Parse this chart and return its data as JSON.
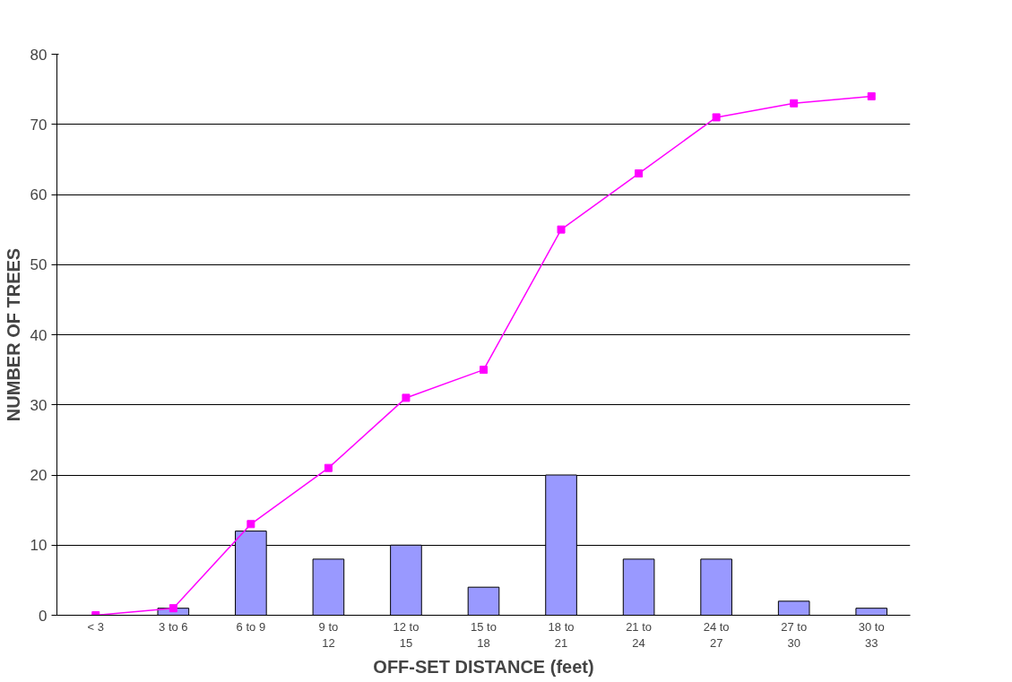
{
  "chart_data": {
    "type": "bar",
    "xlabel": "OFF-SET DISTANCE (feet)",
    "ylabel": "NUMBER OF TREES",
    "categories": [
      "< 3",
      "3 to 6",
      "6 to 9",
      "9 to\n12",
      "12 to\n15",
      "15 to\n18",
      "18 to\n21",
      "21 to\n24",
      "24 to\n27",
      "27 to\n30",
      "30 to\n33"
    ],
    "series": [
      {
        "color": "#9999ff",
        "values": [
          0,
          1,
          12,
          8,
          10,
          4,
          20,
          8,
          8,
          2,
          1
        ]
      },
      {
        "type": "line",
        "color": "#ff00ff",
        "marker": "square",
        "values": [
          0,
          1,
          13,
          21,
          31,
          35,
          55,
          63,
          71,
          73,
          74
        ]
      }
    ],
    "ylim": [
      0,
      80
    ],
    "yticks": [
      0,
      10,
      20,
      30,
      40,
      50,
      60,
      70,
      80
    ],
    "grid": "y"
  }
}
